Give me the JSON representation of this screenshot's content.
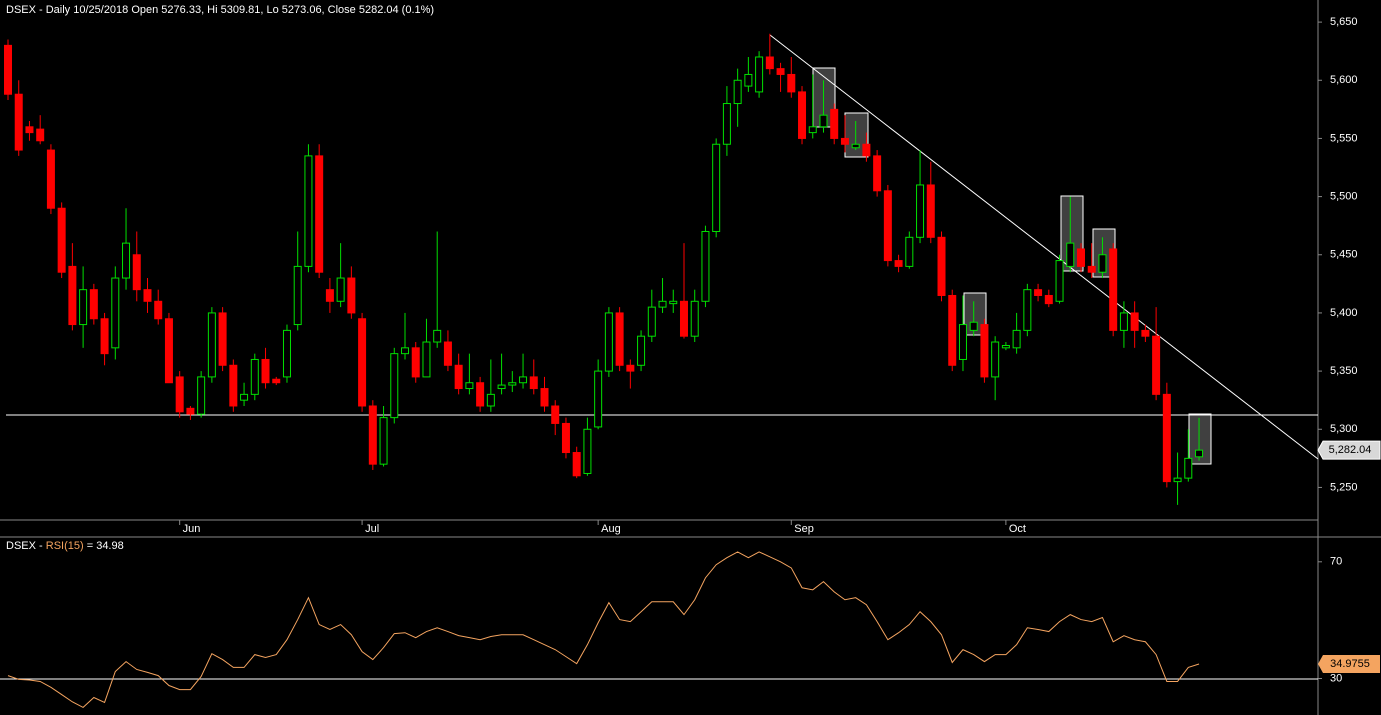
{
  "chart_data": [
    {
      "type": "candlestick",
      "title": "DSEX - Daily 10/25/2018 Open 5276.33, Hi 5309.81, Lo 5273.06, Close 5282.04 (0.1%)",
      "categories": [
        null,
        null,
        null,
        null,
        null,
        null,
        null,
        null,
        null,
        null,
        null,
        null,
        null,
        null,
        null,
        null,
        "Jun",
        null,
        null,
        null,
        null,
        null,
        null,
        null,
        null,
        null,
        null,
        null,
        null,
        null,
        null,
        null,
        null,
        "Jul",
        null,
        null,
        null,
        null,
        null,
        null,
        null,
        null,
        null,
        null,
        null,
        null,
        null,
        null,
        null,
        null,
        null,
        null,
        null,
        null,
        null,
        "Aug",
        null,
        null,
        null,
        null,
        null,
        null,
        null,
        null,
        null,
        null,
        null,
        null,
        null,
        null,
        null,
        null,
        null,
        "Sep",
        null,
        null,
        null,
        null,
        null,
        null,
        null,
        null,
        null,
        null,
        null,
        null,
        null,
        null,
        null,
        null,
        null,
        null,
        null,
        "Oct",
        null,
        null,
        null,
        null,
        null,
        null,
        null,
        null,
        null,
        null,
        null,
        null,
        null,
        null,
        null,
        null,
        null,
        null
      ],
      "open": [
        5630,
        5588,
        5560,
        5558,
        5540,
        5490,
        5440,
        5390,
        5420,
        5395,
        5370,
        5430,
        5450,
        5420,
        5410,
        5395,
        5345,
        5318,
        5313,
        5345,
        5400,
        5355,
        5325,
        5330,
        5360,
        5343,
        5345,
        5390,
        5440,
        5535,
        5420,
        5410,
        5430,
        5395,
        5320,
        5270,
        5310,
        5365,
        5370,
        5345,
        5375,
        5375,
        5355,
        5335,
        5340,
        5320,
        5335,
        5338,
        5340,
        5345,
        5335,
        5320,
        5305,
        5280,
        5262,
        5302,
        5350,
        5400,
        5355,
        5355,
        5380,
        5405,
        5408,
        5410,
        5380,
        5410,
        5470,
        5545,
        5580,
        5595,
        5590,
        5620,
        5610,
        5605,
        5590,
        5555,
        5560,
        5575,
        5550,
        5542,
        5545,
        5535,
        5505,
        5445,
        5440,
        5465,
        5510,
        5465,
        5415,
        5360,
        5385,
        5390,
        5345,
        5370,
        5370,
        5385,
        5420,
        5415,
        5410,
        5440,
        5455,
        5440,
        5435,
        5455,
        5385,
        5400,
        5385,
        5380,
        5330,
        5255,
        5258,
        5276.33
      ],
      "high": [
        5635,
        5600,
        5565,
        5570,
        5545,
        5495,
        5460,
        5440,
        5425,
        5400,
        5440,
        5490,
        5470,
        5430,
        5420,
        5400,
        5350,
        5320,
        5350,
        5405,
        5405,
        5360,
        5340,
        5365,
        5370,
        5345,
        5390,
        5470,
        5545,
        5545,
        5430,
        5460,
        5440,
        5400,
        5325,
        5320,
        5370,
        5400,
        5375,
        5395,
        5470,
        5385,
        5365,
        5365,
        5345,
        5360,
        5365,
        5350,
        5365,
        5360,
        5345,
        5325,
        5310,
        5285,
        5310,
        5360,
        5405,
        5405,
        5360,
        5385,
        5420,
        5430,
        5420,
        5460,
        5420,
        5475,
        5550,
        5595,
        5610,
        5620,
        5625,
        5640,
        5615,
        5620,
        5595,
        5605,
        5600,
        5580,
        5570,
        5565,
        5555,
        5540,
        5510,
        5450,
        5470,
        5540,
        5530,
        5470,
        5420,
        5415,
        5410,
        5395,
        5380,
        5375,
        5400,
        5425,
        5425,
        5420,
        5450,
        5500,
        5460,
        5460,
        5465,
        5460,
        5410,
        5410,
        5390,
        5405,
        5340,
        5280,
        5300,
        5309.81
      ],
      "low": [
        5583,
        5535,
        5548,
        5545,
        5485,
        5430,
        5385,
        5370,
        5390,
        5355,
        5360,
        5420,
        5410,
        5400,
        5390,
        5340,
        5310,
        5308,
        5310,
        5340,
        5350,
        5315,
        5320,
        5325,
        5335,
        5338,
        5340,
        5385,
        5435,
        5430,
        5400,
        5405,
        5395,
        5315,
        5265,
        5268,
        5305,
        5360,
        5340,
        5345,
        5370,
        5350,
        5330,
        5330,
        5315,
        5315,
        5330,
        5332,
        5335,
        5330,
        5315,
        5295,
        5275,
        5258,
        5260,
        5300,
        5345,
        5350,
        5335,
        5350,
        5375,
        5400,
        5400,
        5378,
        5375,
        5405,
        5465,
        5535,
        5560,
        5590,
        5585,
        5605,
        5590,
        5585,
        5545,
        5550,
        5555,
        5545,
        5538,
        5540,
        5530,
        5500,
        5440,
        5435,
        5438,
        5460,
        5460,
        5410,
        5350,
        5350,
        5380,
        5340,
        5325,
        5368,
        5365,
        5380,
        5410,
        5405,
        5408,
        5435,
        5435,
        5430,
        5430,
        5380,
        5370,
        5370,
        5375,
        5325,
        5250,
        5235,
        5255,
        5273.06
      ],
      "close": [
        5588,
        5540,
        5555,
        5548,
        5490,
        5435,
        5390,
        5420,
        5395,
        5365,
        5430,
        5460,
        5420,
        5410,
        5395,
        5340,
        5315,
        5313,
        5345,
        5400,
        5355,
        5320,
        5330,
        5360,
        5340,
        5340,
        5385,
        5440,
        5535,
        5435,
        5410,
        5430,
        5400,
        5320,
        5270,
        5310,
        5365,
        5370,
        5345,
        5375,
        5385,
        5355,
        5335,
        5340,
        5320,
        5330,
        5338,
        5340,
        5345,
        5335,
        5320,
        5305,
        5280,
        5260,
        5300,
        5350,
        5400,
        5355,
        5350,
        5380,
        5405,
        5410,
        5410,
        5380,
        5410,
        5470,
        5545,
        5580,
        5600,
        5605,
        5620,
        5610,
        5605,
        5590,
        5550,
        5560,
        5570,
        5550,
        5545,
        5545,
        5535,
        5505,
        5445,
        5440,
        5465,
        5510,
        5465,
        5415,
        5355,
        5390,
        5392,
        5345,
        5375,
        5372,
        5385,
        5420,
        5415,
        5408,
        5445,
        5460,
        5440,
        5435,
        5450,
        5385,
        5400,
        5385,
        5380,
        5330,
        5255,
        5258,
        5275,
        5282.04
      ],
      "up_color": "#00e000",
      "down_color": "#ff0000",
      "last_value_label": "5,282.04",
      "ylim": [
        5222,
        5669
      ],
      "yticks": [
        {
          "value": 5250,
          "label": "5,250"
        },
        {
          "value": 5300,
          "label": "5,300"
        },
        {
          "value": 5350,
          "label": "5,350"
        },
        {
          "value": 5400,
          "label": "5,400"
        },
        {
          "value": 5450,
          "label": "5,450"
        },
        {
          "value": 5500,
          "label": "5,500"
        },
        {
          "value": 5550,
          "label": "5,550"
        },
        {
          "value": 5600,
          "label": "5,600"
        },
        {
          "value": 5650,
          "label": "5,650"
        }
      ]
    },
    {
      "type": "line",
      "title_prefix": "DSEX -",
      "indicator": "RSI(15)",
      "title_value": "= 34.98",
      "color": "#f4a460",
      "values": [
        31.0,
        29.7,
        29.5,
        29.0,
        27.0,
        24.5,
        22.0,
        20.1,
        23.5,
        21.8,
        32.4,
        35.8,
        33.1,
        32.1,
        31.0,
        27.6,
        26.2,
        26.2,
        30.7,
        38.5,
        36.5,
        33.8,
        33.8,
        38.2,
        37.2,
        38.2,
        43.3,
        50.2,
        57.7,
        48.5,
        46.8,
        48.5,
        45.0,
        39.2,
        36.5,
        40.6,
        45.4,
        45.7,
        44.0,
        46.1,
        47.4,
        46.1,
        44.7,
        44.0,
        43.3,
        44.4,
        45.0,
        45.0,
        45.0,
        43.3,
        41.6,
        39.9,
        37.5,
        35.1,
        41.6,
        49.1,
        56.0,
        50.2,
        49.5,
        52.9,
        56.3,
        56.3,
        56.3,
        51.9,
        57.0,
        64.5,
        69.0,
        71.4,
        73.4,
        71.4,
        73.4,
        71.7,
        70.0,
        67.9,
        61.1,
        60.4,
        63.2,
        59.7,
        57.0,
        57.7,
        55.3,
        49.5,
        43.3,
        45.7,
        48.5,
        52.9,
        49.5,
        45.0,
        35.5,
        39.9,
        38.2,
        35.8,
        38.2,
        38.2,
        41.6,
        47.4,
        46.8,
        46.1,
        49.5,
        51.9,
        50.2,
        49.5,
        50.9,
        42.6,
        44.7,
        43.3,
        42.6,
        38.2,
        29.0,
        29.0,
        33.8,
        34.9755
      ],
      "last_value_label": "34.9755",
      "ylim": [
        17.5,
        78.5
      ],
      "yticks": [
        30,
        70
      ]
    }
  ]
}
